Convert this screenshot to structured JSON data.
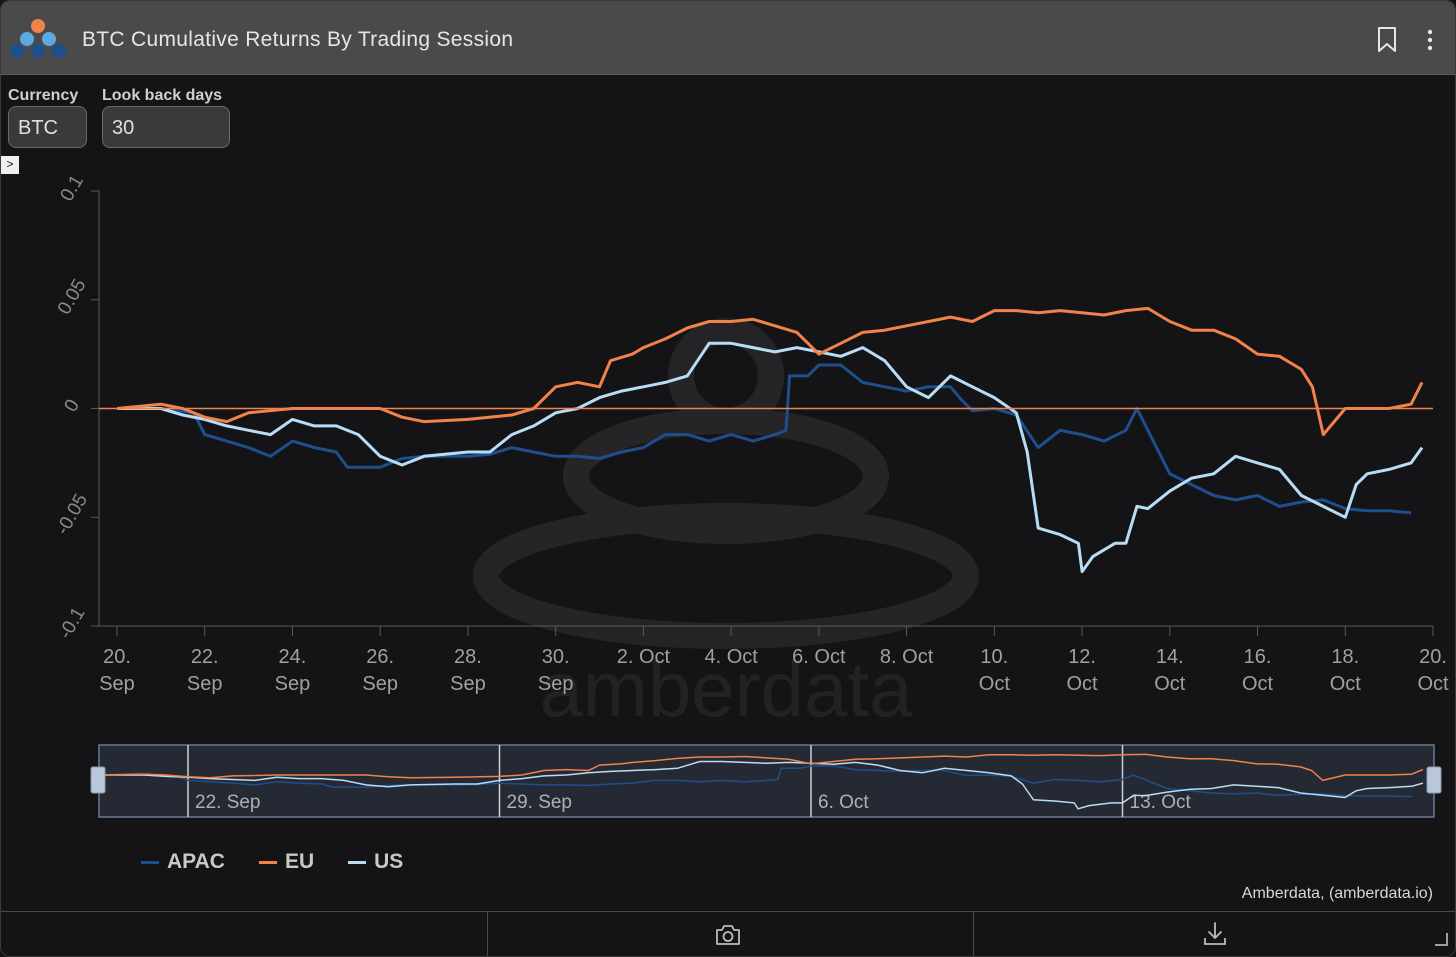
{
  "header": {
    "title": "BTC Cumulative Returns By Trading Session",
    "logo_icon": "amberdata-logo-icon",
    "bookmark_icon": "bookmark-icon",
    "menu_icon": "vertical-dots-menu-icon"
  },
  "controls": {
    "currency_label": "Currency",
    "currency_value": "BTC",
    "lookback_label": "Look back days",
    "lookback_value": "30",
    "expand_glyph": ">"
  },
  "colors": {
    "apac": "#1f4e8c",
    "eu": "#f0824a",
    "us": "#b9dcf5",
    "zero_line": "#f0824a",
    "background": "#141416"
  },
  "chart_data": {
    "type": "line",
    "title": "",
    "xlabel": "",
    "ylabel": "",
    "ylim": [
      -0.1,
      0.1
    ],
    "yticks": [
      "0.1",
      "0.05",
      "0",
      "-0.05",
      "-0.1"
    ],
    "xlim": [
      "2022-09-20",
      "2022-10-20"
    ],
    "xticks": [
      {
        "date": "2022-09-20",
        "line1": "20.",
        "line2": "Sep"
      },
      {
        "date": "2022-09-22",
        "line1": "22.",
        "line2": "Sep"
      },
      {
        "date": "2022-09-24",
        "line1": "24.",
        "line2": "Sep"
      },
      {
        "date": "2022-09-26",
        "line1": "26.",
        "line2": "Sep"
      },
      {
        "date": "2022-09-28",
        "line1": "28.",
        "line2": "Sep"
      },
      {
        "date": "2022-09-30",
        "line1": "30.",
        "line2": "Sep"
      },
      {
        "date": "2022-10-02",
        "line1": "2. Oct",
        "line2": ""
      },
      {
        "date": "2022-10-04",
        "line1": "4. Oct",
        "line2": ""
      },
      {
        "date": "2022-10-06",
        "line1": "6. Oct",
        "line2": ""
      },
      {
        "date": "2022-10-08",
        "line1": "8. Oct",
        "line2": ""
      },
      {
        "date": "2022-10-10",
        "line1": "10.",
        "line2": "Oct"
      },
      {
        "date": "2022-10-12",
        "line1": "12.",
        "line2": "Oct"
      },
      {
        "date": "2022-10-14",
        "line1": "14.",
        "line2": "Oct"
      },
      {
        "date": "2022-10-16",
        "line1": "16.",
        "line2": "Oct"
      },
      {
        "date": "2022-10-18",
        "line1": "18.",
        "line2": "Oct"
      },
      {
        "date": "2022-10-20",
        "line1": "20.",
        "line2": "Oct"
      }
    ],
    "navigator_ticks": [
      {
        "date": "2022-09-22",
        "label": "22. Sep"
      },
      {
        "date": "2022-09-29",
        "label": "29. Sep"
      },
      {
        "date": "2022-10-06",
        "label": "6. Oct"
      },
      {
        "date": "2022-10-13",
        "label": "13. Oct"
      }
    ],
    "legend_position": "bottom-left",
    "grid": false,
    "watermark": "amberdata",
    "series": [
      {
        "name": "APAC",
        "color": "#1f4e8c",
        "points": [
          [
            "2022-09-20T00:00",
            0.0
          ],
          [
            "2022-09-21T00:00",
            0.0
          ],
          [
            "2022-09-21T18:00",
            -0.002
          ],
          [
            "2022-09-22T00:00",
            -0.012
          ],
          [
            "2022-09-22T12:00",
            -0.015
          ],
          [
            "2022-09-23T00:00",
            -0.018
          ],
          [
            "2022-09-23T12:00",
            -0.022
          ],
          [
            "2022-09-24T00:00",
            -0.015
          ],
          [
            "2022-09-24T12:00",
            -0.018
          ],
          [
            "2022-09-25T00:00",
            -0.02
          ],
          [
            "2022-09-25T06:00",
            -0.027
          ],
          [
            "2022-09-26T00:00",
            -0.027
          ],
          [
            "2022-09-26T12:00",
            -0.023
          ],
          [
            "2022-09-27T00:00",
            -0.022
          ],
          [
            "2022-09-28T00:00",
            -0.022
          ],
          [
            "2022-09-28T12:00",
            -0.021
          ],
          [
            "2022-09-29T00:00",
            -0.018
          ],
          [
            "2022-09-29T12:00",
            -0.02
          ],
          [
            "2022-09-30T00:00",
            -0.022
          ],
          [
            "2022-09-30T12:00",
            -0.022
          ],
          [
            "2022-10-01T00:00",
            -0.023
          ],
          [
            "2022-10-01T12:00",
            -0.02
          ],
          [
            "2022-10-02T00:00",
            -0.018
          ],
          [
            "2022-10-02T12:00",
            -0.012
          ],
          [
            "2022-10-03T00:00",
            -0.012
          ],
          [
            "2022-10-03T12:00",
            -0.015
          ],
          [
            "2022-10-04T00:00",
            -0.012
          ],
          [
            "2022-10-04T12:00",
            -0.015
          ],
          [
            "2022-10-05T00:00",
            -0.012
          ],
          [
            "2022-10-05T06:00",
            -0.01
          ],
          [
            "2022-10-05T08:00",
            0.015
          ],
          [
            "2022-10-05T18:00",
            0.015
          ],
          [
            "2022-10-06T00:00",
            0.02
          ],
          [
            "2022-10-06T12:00",
            0.02
          ],
          [
            "2022-10-07T00:00",
            0.012
          ],
          [
            "2022-10-07T12:00",
            0.01
          ],
          [
            "2022-10-08T00:00",
            0.008
          ],
          [
            "2022-10-08T12:00",
            0.01
          ],
          [
            "2022-10-09T00:00",
            0.01
          ],
          [
            "2022-10-09T06:00",
            0.004
          ],
          [
            "2022-10-09T12:00",
            -0.001
          ],
          [
            "2022-10-10T00:00",
            0.0
          ],
          [
            "2022-10-10T12:00",
            -0.003
          ],
          [
            "2022-10-11T00:00",
            -0.018
          ],
          [
            "2022-10-11T12:00",
            -0.01
          ],
          [
            "2022-10-12T00:00",
            -0.012
          ],
          [
            "2022-10-12T12:00",
            -0.015
          ],
          [
            "2022-10-13T00:00",
            -0.01
          ],
          [
            "2022-10-13T06:00",
            0.0
          ],
          [
            "2022-10-13T12:00",
            -0.01
          ],
          [
            "2022-10-14T00:00",
            -0.03
          ],
          [
            "2022-10-14T12:00",
            -0.035
          ],
          [
            "2022-10-15T00:00",
            -0.04
          ],
          [
            "2022-10-15T12:00",
            -0.042
          ],
          [
            "2022-10-16T00:00",
            -0.04
          ],
          [
            "2022-10-16T12:00",
            -0.045
          ],
          [
            "2022-10-17T00:00",
            -0.043
          ],
          [
            "2022-10-17T12:00",
            -0.042
          ],
          [
            "2022-10-18T00:00",
            -0.046
          ],
          [
            "2022-10-18T12:00",
            -0.047
          ],
          [
            "2022-10-19T00:00",
            -0.047
          ],
          [
            "2022-10-19T12:00",
            -0.048
          ]
        ]
      },
      {
        "name": "EU",
        "color": "#f0824a",
        "points": [
          [
            "2022-09-20T00:00",
            0.0
          ],
          [
            "2022-09-21T00:00",
            0.002
          ],
          [
            "2022-09-21T12:00",
            0.0
          ],
          [
            "2022-09-22T00:00",
            -0.004
          ],
          [
            "2022-09-22T12:00",
            -0.006
          ],
          [
            "2022-09-23T00:00",
            -0.002
          ],
          [
            "2022-09-24T00:00",
            0.0
          ],
          [
            "2022-09-25T00:00",
            0.0
          ],
          [
            "2022-09-26T00:00",
            0.0
          ],
          [
            "2022-09-26T12:00",
            -0.004
          ],
          [
            "2022-09-27T00:00",
            -0.006
          ],
          [
            "2022-09-28T00:00",
            -0.005
          ],
          [
            "2022-09-29T00:00",
            -0.003
          ],
          [
            "2022-09-29T12:00",
            0.0
          ],
          [
            "2022-09-30T00:00",
            0.01
          ],
          [
            "2022-09-30T12:00",
            0.012
          ],
          [
            "2022-10-01T00:00",
            0.01
          ],
          [
            "2022-10-01T06:00",
            0.022
          ],
          [
            "2022-10-01T18:00",
            0.025
          ],
          [
            "2022-10-02T00:00",
            0.028
          ],
          [
            "2022-10-02T12:00",
            0.032
          ],
          [
            "2022-10-03T00:00",
            0.037
          ],
          [
            "2022-10-03T12:00",
            0.04
          ],
          [
            "2022-10-04T00:00",
            0.04
          ],
          [
            "2022-10-04T12:00",
            0.041
          ],
          [
            "2022-10-05T00:00",
            0.038
          ],
          [
            "2022-10-05T12:00",
            0.035
          ],
          [
            "2022-10-06T00:00",
            0.025
          ],
          [
            "2022-10-06T12:00",
            0.03
          ],
          [
            "2022-10-07T00:00",
            0.035
          ],
          [
            "2022-10-07T12:00",
            0.036
          ],
          [
            "2022-10-08T00:00",
            0.038
          ],
          [
            "2022-10-08T12:00",
            0.04
          ],
          [
            "2022-10-09T00:00",
            0.042
          ],
          [
            "2022-10-09T12:00",
            0.04
          ],
          [
            "2022-10-10T00:00",
            0.045
          ],
          [
            "2022-10-10T12:00",
            0.045
          ],
          [
            "2022-10-11T00:00",
            0.044
          ],
          [
            "2022-10-11T12:00",
            0.045
          ],
          [
            "2022-10-12T00:00",
            0.044
          ],
          [
            "2022-10-12T12:00",
            0.043
          ],
          [
            "2022-10-13T00:00",
            0.045
          ],
          [
            "2022-10-13T12:00",
            0.046
          ],
          [
            "2022-10-14T00:00",
            0.04
          ],
          [
            "2022-10-14T12:00",
            0.036
          ],
          [
            "2022-10-15T00:00",
            0.036
          ],
          [
            "2022-10-15T12:00",
            0.032
          ],
          [
            "2022-10-16T00:00",
            0.025
          ],
          [
            "2022-10-16T12:00",
            0.024
          ],
          [
            "2022-10-17T00:00",
            0.018
          ],
          [
            "2022-10-17T06:00",
            0.01
          ],
          [
            "2022-10-17T12:00",
            -0.012
          ],
          [
            "2022-10-18T00:00",
            0.0
          ],
          [
            "2022-10-18T12:00",
            0.0
          ],
          [
            "2022-10-19T00:00",
            0.0
          ],
          [
            "2022-10-19T12:00",
            0.002
          ],
          [
            "2022-10-19T18:00",
            0.012
          ]
        ]
      },
      {
        "name": "US",
        "color": "#b9dcf5",
        "points": [
          [
            "2022-09-20T00:00",
            0.0
          ],
          [
            "2022-09-21T00:00",
            0.0
          ],
          [
            "2022-09-21T12:00",
            -0.003
          ],
          [
            "2022-09-22T00:00",
            -0.005
          ],
          [
            "2022-09-22T12:00",
            -0.008
          ],
          [
            "2022-09-23T00:00",
            -0.01
          ],
          [
            "2022-09-23T12:00",
            -0.012
          ],
          [
            "2022-09-24T00:00",
            -0.005
          ],
          [
            "2022-09-24T12:00",
            -0.008
          ],
          [
            "2022-09-25T00:00",
            -0.008
          ],
          [
            "2022-09-25T12:00",
            -0.012
          ],
          [
            "2022-09-26T00:00",
            -0.022
          ],
          [
            "2022-09-26T12:00",
            -0.026
          ],
          [
            "2022-09-27T00:00",
            -0.022
          ],
          [
            "2022-09-28T00:00",
            -0.02
          ],
          [
            "2022-09-28T12:00",
            -0.02
          ],
          [
            "2022-09-29T00:00",
            -0.012
          ],
          [
            "2022-09-29T12:00",
            -0.008
          ],
          [
            "2022-09-30T00:00",
            -0.002
          ],
          [
            "2022-09-30T12:00",
            0.0
          ],
          [
            "2022-10-01T00:00",
            0.005
          ],
          [
            "2022-10-01T12:00",
            0.008
          ],
          [
            "2022-10-02T00:00",
            0.01
          ],
          [
            "2022-10-02T12:00",
            0.012
          ],
          [
            "2022-10-03T00:00",
            0.015
          ],
          [
            "2022-10-03T12:00",
            0.03
          ],
          [
            "2022-10-04T00:00",
            0.03
          ],
          [
            "2022-10-04T12:00",
            0.028
          ],
          [
            "2022-10-05T00:00",
            0.026
          ],
          [
            "2022-10-05T12:00",
            0.028
          ],
          [
            "2022-10-06T00:00",
            0.026
          ],
          [
            "2022-10-06T12:00",
            0.024
          ],
          [
            "2022-10-07T00:00",
            0.028
          ],
          [
            "2022-10-07T12:00",
            0.022
          ],
          [
            "2022-10-08T00:00",
            0.01
          ],
          [
            "2022-10-08T12:00",
            0.005
          ],
          [
            "2022-10-09T00:00",
            0.015
          ],
          [
            "2022-10-09T12:00",
            0.01
          ],
          [
            "2022-10-10T00:00",
            0.005
          ],
          [
            "2022-10-10T12:00",
            -0.002
          ],
          [
            "2022-10-10T18:00",
            -0.02
          ],
          [
            "2022-10-11T00:00",
            -0.055
          ],
          [
            "2022-10-11T12:00",
            -0.058
          ],
          [
            "2022-10-11T22:00",
            -0.062
          ],
          [
            "2022-10-12T00:00",
            -0.075
          ],
          [
            "2022-10-12T06:00",
            -0.068
          ],
          [
            "2022-10-12T18:00",
            -0.062
          ],
          [
            "2022-10-13T00:00",
            -0.062
          ],
          [
            "2022-10-13T06:00",
            -0.045
          ],
          [
            "2022-10-13T12:00",
            -0.046
          ],
          [
            "2022-10-14T00:00",
            -0.038
          ],
          [
            "2022-10-14T12:00",
            -0.032
          ],
          [
            "2022-10-15T00:00",
            -0.03
          ],
          [
            "2022-10-15T12:00",
            -0.022
          ],
          [
            "2022-10-16T00:00",
            -0.025
          ],
          [
            "2022-10-16T12:00",
            -0.028
          ],
          [
            "2022-10-17T00:00",
            -0.04
          ],
          [
            "2022-10-17T12:00",
            -0.045
          ],
          [
            "2022-10-18T00:00",
            -0.05
          ],
          [
            "2022-10-18T06:00",
            -0.035
          ],
          [
            "2022-10-18T12:00",
            -0.03
          ],
          [
            "2022-10-19T00:00",
            -0.028
          ],
          [
            "2022-10-19T12:00",
            -0.025
          ],
          [
            "2022-10-19T18:00",
            -0.018
          ]
        ]
      }
    ]
  },
  "legend": [
    {
      "name": "APAC",
      "color": "#1f4e8c"
    },
    {
      "name": "EU",
      "color": "#f0824a"
    },
    {
      "name": "US",
      "color": "#b9dcf5"
    }
  ],
  "credit": "Amberdata, (amberdata.io)",
  "footer": {
    "camera_icon": "camera-icon",
    "download_icon": "download-icon",
    "resize_icon": "resize-corner-icon"
  }
}
